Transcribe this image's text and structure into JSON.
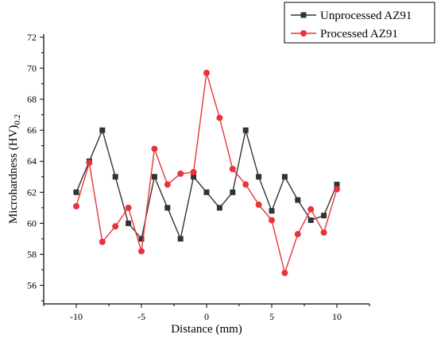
{
  "chart_data": {
    "type": "line",
    "xlabel": "Distance (mm)",
    "ylabel_main": "Microhardness (HV)",
    "ylabel_sub": "0.2",
    "xlim": [
      -12.5,
      12.5
    ],
    "ylim": [
      54.8,
      72.2
    ],
    "x_ticks": [
      -10,
      -5,
      0,
      5,
      10
    ],
    "y_ticks": [
      56,
      58,
      60,
      62,
      64,
      66,
      68,
      70,
      72
    ],
    "x_tick_labels": [
      "-10",
      "-5",
      "0",
      "5",
      "10"
    ],
    "y_tick_labels": [
      "56",
      "58",
      "60",
      "62",
      "64",
      "66",
      "68",
      "70",
      "72"
    ],
    "legend_position": "top-right",
    "x": [
      -10,
      -9,
      -8,
      -7,
      -6,
      -5,
      -4,
      -3,
      -2,
      -1,
      0,
      1,
      2,
      3,
      4,
      5,
      6,
      7,
      8,
      9,
      10
    ],
    "series": [
      {
        "name": "Unprocessed AZ91",
        "color": "#333333",
        "marker": "square",
        "values": [
          62.0,
          64.0,
          66.0,
          63.0,
          60.0,
          59.0,
          63.0,
          61.0,
          59.0,
          63.0,
          62.0,
          61.0,
          62.0,
          66.0,
          63.0,
          60.8,
          63.0,
          61.5,
          60.2,
          60.5,
          62.5
        ]
      },
      {
        "name": "Processed AZ91",
        "color": "#e8333a",
        "marker": "circle",
        "values": [
          61.1,
          63.9,
          58.8,
          59.8,
          61.0,
          58.2,
          64.8,
          62.5,
          63.2,
          63.3,
          69.7,
          66.8,
          63.5,
          62.5,
          61.2,
          60.2,
          56.8,
          59.3,
          60.9,
          59.4,
          62.2
        ]
      }
    ]
  }
}
